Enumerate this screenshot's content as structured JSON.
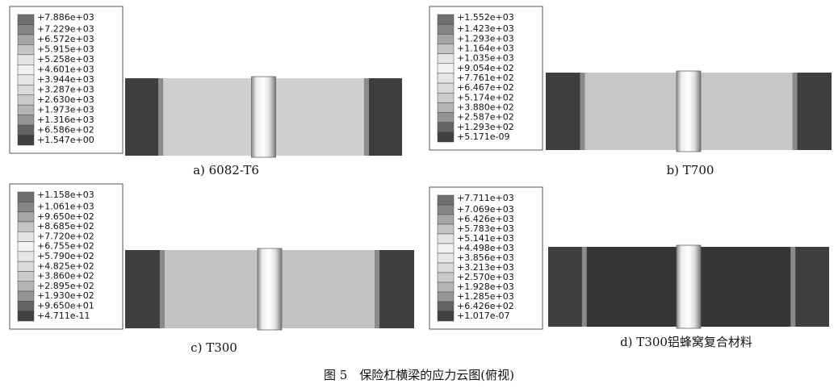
{
  "panels": [
    {
      "legend": [
        "+7.886e+03",
        "+7.229e+03",
        "+6.572e+03",
        "+5.915e+03",
        "+5.258e+03",
        "+4.601e+03",
        "+3.944e+03",
        "+3.287e+03",
        "+2.630e+03",
        "+1.973e+03",
        "+1.316e+03",
        "+6.586e+02",
        "+1.547e+00"
      ],
      "caption": "a) 6082-T6"
    },
    {
      "legend": [
        "+1.552e+03",
        "+1.423e+03",
        "+1.293e+03",
        "+1.164e+03",
        "+1.035e+03",
        "+9.054e+02",
        "+7.761e+02",
        "+6.467e+02",
        "+5.174e+02",
        "+3.880e+02",
        "+2.587e+02",
        "+1.293e+02",
        "+5.171e-09"
      ],
      "caption": "b) T700"
    },
    {
      "legend": [
        "+1.158e+03",
        "+1.061e+03",
        "+9.650e+02",
        "+8.685e+02",
        "+7.720e+02",
        "+6.755e+02",
        "+5.790e+02",
        "+4.825e+02",
        "+3.860e+02",
        "+2.895e+02",
        "+1.930e+02",
        "+9.650e+01",
        "+4.711e-11"
      ],
      "caption": "c) T300"
    },
    {
      "legend": [
        "+7.711e+03",
        "+7.069e+03",
        "+6.426e+03",
        "+5.783e+03",
        "+5.141e+03",
        "+4.498e+03",
        "+3.856e+03",
        "+3.213e+03",
        "+2.570e+03",
        "+1.928e+03",
        "+1.285e+03",
        "+6.426e+02",
        "+1.017e-07"
      ],
      "caption": "d) T300铝蜂窝复合材料"
    }
  ],
  "caption": "图 5　保险杠横梁的应力云图(俯视)"
}
